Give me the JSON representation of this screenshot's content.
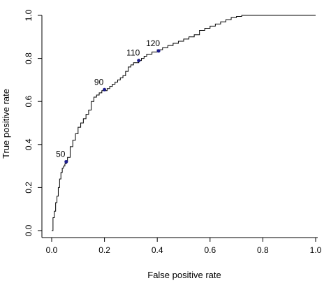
{
  "chart_data": {
    "type": "line",
    "title": "",
    "xlabel": "False positive rate",
    "ylabel": "True positive rate",
    "xlim": [
      0,
      1
    ],
    "ylim": [
      0,
      1
    ],
    "x_ticks": [
      "0.0",
      "0.2",
      "0.4",
      "0.6",
      "0.8",
      "1.0"
    ],
    "y_ticks": [
      "0.0",
      "0.2",
      "0.4",
      "0.6",
      "0.8",
      "1.0"
    ],
    "x_tick_values": [
      0,
      0.2,
      0.4,
      0.6,
      0.8,
      1.0
    ],
    "y_tick_values": [
      0,
      0.2,
      0.4,
      0.6,
      0.8,
      1.0
    ],
    "grid": false,
    "legend": "none",
    "series": [
      {
        "name": "",
        "x": [
          0.0,
          0.005,
          0.01,
          0.015,
          0.02,
          0.025,
          0.03,
          0.035,
          0.04,
          0.045,
          0.05,
          0.055,
          0.06,
          0.07,
          0.08,
          0.09,
          0.1,
          0.11,
          0.12,
          0.13,
          0.14,
          0.15,
          0.16,
          0.17,
          0.18,
          0.19,
          0.2,
          0.21,
          0.22,
          0.23,
          0.24,
          0.25,
          0.26,
          0.27,
          0.28,
          0.29,
          0.3,
          0.31,
          0.32,
          0.33,
          0.34,
          0.35,
          0.36,
          0.37,
          0.38,
          0.39,
          0.4,
          0.42,
          0.44,
          0.46,
          0.48,
          0.5,
          0.52,
          0.54,
          0.56,
          0.58,
          0.6,
          0.62,
          0.64,
          0.66,
          0.68,
          0.7,
          0.72,
          0.75,
          0.8,
          0.85,
          0.9,
          0.95,
          1.0
        ],
        "y": [
          0.0,
          0.06,
          0.09,
          0.13,
          0.16,
          0.2,
          0.24,
          0.27,
          0.29,
          0.3,
          0.31,
          0.32,
          0.34,
          0.39,
          0.42,
          0.45,
          0.48,
          0.5,
          0.52,
          0.54,
          0.56,
          0.6,
          0.62,
          0.63,
          0.64,
          0.65,
          0.65,
          0.66,
          0.67,
          0.68,
          0.69,
          0.7,
          0.71,
          0.72,
          0.74,
          0.76,
          0.77,
          0.78,
          0.78,
          0.79,
          0.8,
          0.81,
          0.82,
          0.82,
          0.83,
          0.83,
          0.84,
          0.85,
          0.86,
          0.87,
          0.88,
          0.89,
          0.9,
          0.91,
          0.93,
          0.94,
          0.95,
          0.96,
          0.97,
          0.98,
          0.99,
          0.995,
          1.0,
          1.0,
          1.0,
          1.0,
          1.0,
          1.0,
          1.0
        ]
      }
    ],
    "points": [
      {
        "label": "50",
        "x": 0.055,
        "y": 0.32
      },
      {
        "label": "90",
        "x": 0.2,
        "y": 0.655
      },
      {
        "label": "110",
        "x": 0.33,
        "y": 0.79
      },
      {
        "label": "120",
        "x": 0.405,
        "y": 0.835
      }
    ]
  }
}
